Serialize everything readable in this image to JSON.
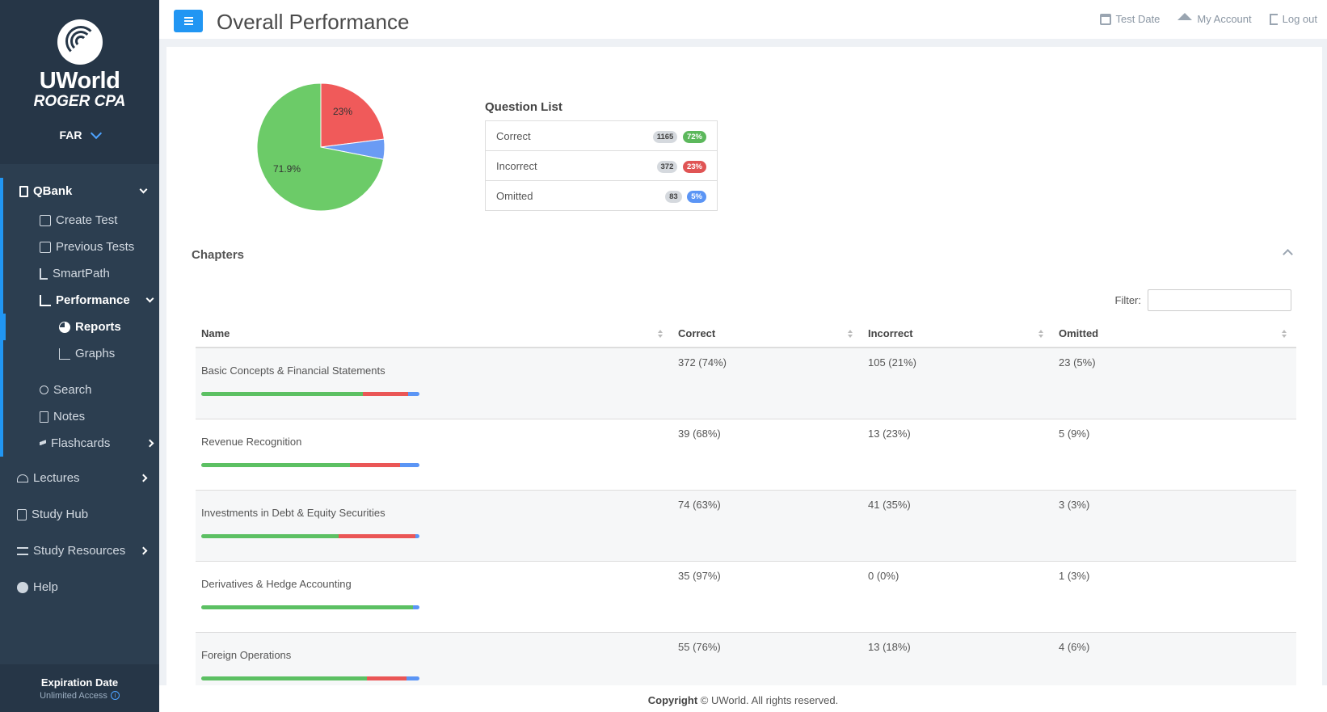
{
  "brand": {
    "name": "UWorld",
    "sub": "ROGER CPA",
    "section": "FAR"
  },
  "nav": {
    "qbank": "QBank",
    "create_test": "Create Test",
    "previous_tests": "Previous Tests",
    "smartpath": "SmartPath",
    "performance": "Performance",
    "reports": "Reports",
    "graphs": "Graphs",
    "search": "Search",
    "notes": "Notes",
    "flashcards": "Flashcards",
    "lectures": "Lectures",
    "study_hub": "Study Hub",
    "study_resources": "Study Resources",
    "help": "Help"
  },
  "expiry": {
    "title": "Expiration Date",
    "sub": "Unlimited Access"
  },
  "header": {
    "title": "Overall Performance",
    "test_date": "Test Date",
    "my_account": "My Account",
    "log_out": "Log out"
  },
  "pie": {
    "labels": {
      "incorrect": "23%",
      "correct": "71.9%"
    },
    "colors": {
      "correct": "#6ccb68",
      "incorrect": "#f05a5a",
      "omitted": "#6a9bf4"
    }
  },
  "chart_data": {
    "type": "pie",
    "categories": [
      "Correct",
      "Incorrect",
      "Omitted"
    ],
    "values": [
      71.9,
      23,
      5.1
    ]
  },
  "question_list": {
    "title": "Question List",
    "rows": [
      {
        "label": "Correct",
        "count": "1165",
        "pct": "72%"
      },
      {
        "label": "Incorrect",
        "count": "372",
        "pct": "23%"
      },
      {
        "label": "Omitted",
        "count": "83",
        "pct": "5%"
      }
    ]
  },
  "chapters": {
    "title": "Chapters",
    "filter_label": "Filter:",
    "columns": {
      "name": "Name",
      "correct": "Correct",
      "incorrect": "Incorrect",
      "omitted": "Omitted"
    },
    "rows": [
      {
        "name": "Basic Concepts & Financial Statements",
        "correct": "372 (74%)",
        "incorrect": "105 (21%)",
        "omitted": "23 (5%)",
        "bar": [
          74,
          21,
          5
        ]
      },
      {
        "name": "Revenue Recognition",
        "correct": "39 (68%)",
        "incorrect": "13 (23%)",
        "omitted": "5 (9%)",
        "bar": [
          68,
          23,
          9
        ]
      },
      {
        "name": "Investments in Debt & Equity Securities",
        "correct": "74 (63%)",
        "incorrect": "41 (35%)",
        "omitted": "3 (3%)",
        "bar": [
          63,
          35,
          2
        ]
      },
      {
        "name": "Derivatives & Hedge Accounting",
        "correct": "35 (97%)",
        "incorrect": "0 (0%)",
        "omitted": "1 (3%)",
        "bar": [
          97,
          0,
          3
        ]
      },
      {
        "name": "Foreign Operations",
        "correct": "55 (76%)",
        "incorrect": "13 (18%)",
        "omitted": "4 (6%)",
        "bar": [
          76,
          18,
          6
        ]
      }
    ]
  },
  "footer": {
    "bold": "Copyright",
    "rest": " © UWorld. All rights reserved."
  }
}
